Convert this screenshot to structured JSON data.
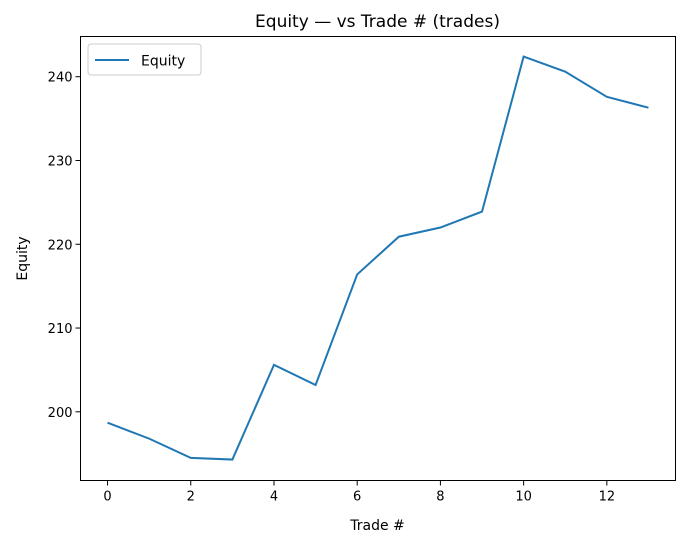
{
  "chart_data": {
    "type": "line",
    "title": "Equity — vs Trade # (trades)",
    "xlabel": "Trade #",
    "ylabel": "Equity",
    "x": [
      0,
      1,
      2,
      3,
      4,
      5,
      6,
      7,
      8,
      9,
      10,
      11,
      12,
      13
    ],
    "series": [
      {
        "name": "Equity",
        "color": "#1f77b4",
        "values": [
          198.7,
          196.8,
          194.5,
          194.3,
          205.6,
          203.2,
          216.4,
          220.9,
          222.0,
          223.9,
          242.4,
          240.6,
          237.6,
          236.3
        ]
      }
    ],
    "xlim": [
      -0.65,
      13.65
    ],
    "ylim": [
      191.8,
      244.8
    ],
    "xticks": [
      0,
      2,
      4,
      6,
      8,
      10,
      12
    ],
    "yticks": [
      200,
      210,
      220,
      230,
      240
    ],
    "grid": false,
    "legend": "upper-left"
  }
}
